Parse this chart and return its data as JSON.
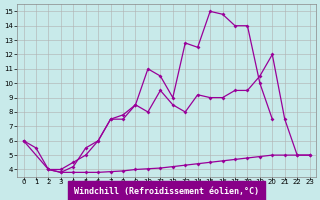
{
  "xlabel": "Windchill (Refroidissement éolien,°C)",
  "bg_color": "#c8eaea",
  "line_color": "#990099",
  "grid_color": "#b0b0b0",
  "xlim": [
    -0.5,
    23.5
  ],
  "ylim": [
    3.5,
    15.5
  ],
  "yticks": [
    4,
    5,
    6,
    7,
    8,
    9,
    10,
    11,
    12,
    13,
    14,
    15
  ],
  "xticks": [
    0,
    1,
    2,
    3,
    4,
    5,
    6,
    7,
    8,
    9,
    10,
    11,
    12,
    13,
    14,
    15,
    16,
    17,
    18,
    19,
    20,
    21,
    22,
    23
  ],
  "s1_x": [
    0,
    1,
    2,
    3,
    4,
    5,
    6,
    7,
    8,
    9,
    10,
    11,
    12,
    13,
    14,
    15,
    16,
    17,
    18,
    19,
    20
  ],
  "s1_y": [
    6.0,
    5.5,
    4.0,
    4.0,
    4.5,
    5.0,
    6.0,
    7.5,
    7.5,
    8.5,
    11.0,
    10.5,
    9.0,
    12.8,
    12.5,
    15.0,
    14.8,
    14.0,
    14.0,
    10.0,
    7.5
  ],
  "s2_x": [
    0,
    2,
    3,
    4,
    5,
    6,
    7,
    8,
    9,
    10,
    11,
    12,
    13,
    14,
    15,
    16,
    17,
    18,
    19,
    20,
    21,
    22,
    23
  ],
  "s2_y": [
    6.0,
    4.0,
    3.8,
    4.2,
    5.5,
    6.0,
    7.5,
    7.8,
    8.5,
    8.0,
    9.5,
    8.5,
    8.0,
    9.2,
    9.0,
    9.0,
    9.5,
    9.5,
    10.5,
    12.0,
    7.5,
    5.0,
    5.0
  ],
  "s3_x": [
    2,
    3,
    4,
    5,
    6,
    7,
    8,
    9,
    10,
    11,
    12,
    13,
    14,
    15,
    16,
    17,
    18,
    19,
    20,
    21,
    22,
    23
  ],
  "s3_y": [
    4.0,
    3.8,
    3.8,
    3.8,
    3.8,
    3.85,
    3.9,
    4.0,
    4.05,
    4.1,
    4.2,
    4.3,
    4.4,
    4.5,
    4.6,
    4.7,
    4.8,
    4.9,
    5.0,
    5.0,
    5.0,
    5.0
  ],
  "xlabel_bg": "#880088",
  "xlabel_fg": "white",
  "xlabel_fontsize": 6,
  "tick_fontsize": 5,
  "marker_size": 2.0,
  "line_width": 0.9
}
